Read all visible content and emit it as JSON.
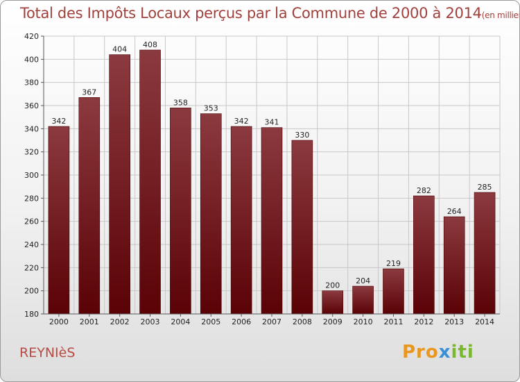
{
  "header": {
    "title": "Total des Impôts Locaux perçus par la Commune de 2000 à 2014",
    "unit": "(en milliers d'€)"
  },
  "footer": {
    "commune": "REYNIèS",
    "logo": [
      "Pro",
      "x",
      "iti"
    ]
  },
  "colors": {
    "bar_top": "#8b3a3f",
    "bar_bottom": "#5a0206",
    "grid": "#c8c8c8",
    "title": "#a0403c"
  },
  "chart_data": {
    "type": "bar",
    "title": "Total des Impôts Locaux perçus par la Commune de 2000 à 2014",
    "xlabel": "",
    "ylabel": "",
    "categories": [
      "2000",
      "2001",
      "2002",
      "2003",
      "2004",
      "2005",
      "2006",
      "2007",
      "2008",
      "2009",
      "2010",
      "2011",
      "2012",
      "2013",
      "2014"
    ],
    "values": [
      342,
      367,
      404,
      408,
      358,
      353,
      342,
      341,
      330,
      200,
      204,
      219,
      282,
      264,
      285
    ],
    "ylim": [
      180,
      420
    ],
    "yticks": [
      180,
      200,
      220,
      240,
      260,
      280,
      300,
      320,
      340,
      360,
      380,
      400,
      420
    ],
    "grid": true
  }
}
